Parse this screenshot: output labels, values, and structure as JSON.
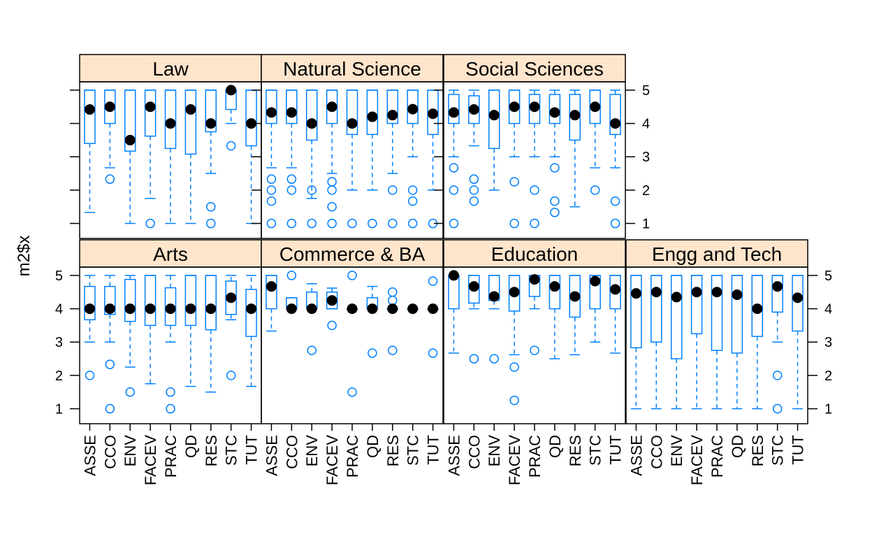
{
  "chart_data": {
    "type": "box",
    "ylabel": "m2$x",
    "categories": [
      "ASSE",
      "CCO",
      "ENV",
      "FACEV",
      "PRAC",
      "QD",
      "RES",
      "STC",
      "TUT"
    ],
    "ylim": [
      0.55,
      5.25
    ],
    "yticks": [
      1,
      2,
      3,
      4,
      5
    ],
    "colors": {
      "box": "#0080ff",
      "median": "#000000",
      "strip": "#ffe5cc",
      "frame": "#000000"
    },
    "panels": [
      {
        "name": "Arts",
        "boxes": [
          {
            "lo": 3.0,
            "q1": 3.67,
            "med": 4.0,
            "q3": 4.67,
            "hi": 5.0,
            "out": [
              2.0
            ]
          },
          {
            "lo": 3.0,
            "q1": 3.83,
            "med": 4.0,
            "q3": 4.67,
            "hi": 5.0,
            "out": [
              2.33,
              1.0
            ]
          },
          {
            "lo": 2.25,
            "q1": 3.62,
            "med": 4.0,
            "q3": 4.88,
            "hi": 5.0,
            "out": [
              1.5
            ]
          },
          {
            "lo": 1.75,
            "q1": 3.5,
            "med": 4.0,
            "q3": 5.0,
            "hi": 5.0,
            "out": []
          },
          {
            "lo": 3.0,
            "q1": 3.5,
            "med": 4.0,
            "q3": 4.63,
            "hi": 5.0,
            "out": [
              1.5,
              1.0
            ]
          },
          {
            "lo": 1.67,
            "q1": 3.5,
            "med": 4.0,
            "q3": 5.0,
            "hi": 5.0,
            "out": []
          },
          {
            "lo": 1.5,
            "q1": 3.37,
            "med": 4.0,
            "q3": 5.0,
            "hi": 5.0,
            "out": []
          },
          {
            "lo": 3.67,
            "q1": 3.83,
            "med": 4.33,
            "q3": 4.83,
            "hi": 5.0,
            "out": [
              2.0
            ]
          },
          {
            "lo": 1.67,
            "q1": 3.17,
            "med": 4.0,
            "q3": 4.58,
            "hi": 5.0,
            "out": []
          }
        ]
      },
      {
        "name": "Commerce & BA",
        "boxes": [
          {
            "lo": 3.33,
            "q1": 4.0,
            "med": 4.67,
            "q3": 5.0,
            "hi": 5.0,
            "out": []
          },
          {
            "lo": 4.0,
            "q1": 4.0,
            "med": 4.0,
            "q3": 4.33,
            "hi": 4.33,
            "out": [
              5.0
            ]
          },
          {
            "lo": 4.0,
            "q1": 4.0,
            "med": 4.0,
            "q3": 4.5,
            "hi": 4.75,
            "out": [
              2.75
            ]
          },
          {
            "lo": 4.0,
            "q1": 4.0,
            "med": 4.25,
            "q3": 4.5,
            "hi": 4.62,
            "out": [
              3.5
            ]
          },
          {
            "lo": 4.0,
            "q1": 4.0,
            "med": 4.0,
            "q3": 4.0,
            "hi": 4.0,
            "out": [
              5.0,
              1.5
            ]
          },
          {
            "lo": 4.0,
            "q1": 4.0,
            "med": 4.0,
            "q3": 4.33,
            "hi": 4.67,
            "out": [
              2.67
            ]
          },
          {
            "lo": 4.0,
            "q1": 4.0,
            "med": 4.0,
            "q3": 4.0,
            "hi": 4.0,
            "out": [
              4.5,
              4.25,
              2.75
            ]
          },
          {
            "lo": 4.0,
            "q1": 4.0,
            "med": 4.0,
            "q3": 4.0,
            "hi": 4.0,
            "out": []
          },
          {
            "lo": 4.0,
            "q1": 4.0,
            "med": 4.0,
            "q3": 4.0,
            "hi": 4.0,
            "out": [
              4.83,
              2.67
            ]
          }
        ]
      },
      {
        "name": "Education",
        "boxes": [
          {
            "lo": 2.67,
            "q1": 4.0,
            "med": 5.0,
            "q3": 5.0,
            "hi": 5.0,
            "out": []
          },
          {
            "lo": 4.0,
            "q1": 4.17,
            "med": 4.67,
            "q3": 5.0,
            "hi": 5.0,
            "out": [
              2.5
            ]
          },
          {
            "lo": 4.0,
            "q1": 4.25,
            "med": 4.37,
            "q3": 5.0,
            "hi": 5.0,
            "out": [
              2.5
            ]
          },
          {
            "lo": 2.62,
            "q1": 3.93,
            "med": 4.5,
            "q3": 5.0,
            "hi": 5.0,
            "out": [
              2.25,
              1.25
            ]
          },
          {
            "lo": 4.0,
            "q1": 4.37,
            "med": 4.88,
            "q3": 5.0,
            "hi": 5.0,
            "out": [
              2.75
            ]
          },
          {
            "lo": 2.5,
            "q1": 4.0,
            "med": 4.67,
            "q3": 5.0,
            "hi": 5.0,
            "out": []
          },
          {
            "lo": 2.62,
            "q1": 3.75,
            "med": 4.37,
            "q3": 5.0,
            "hi": 5.0,
            "out": []
          },
          {
            "lo": 3.0,
            "q1": 4.0,
            "med": 4.83,
            "q3": 5.0,
            "hi": 5.0,
            "out": []
          },
          {
            "lo": 2.67,
            "q1": 4.0,
            "med": 4.58,
            "q3": 5.0,
            "hi": 5.0,
            "out": []
          }
        ]
      },
      {
        "name": "Engg and Tech",
        "boxes": [
          {
            "lo": 1.0,
            "q1": 2.83,
            "med": 4.46,
            "q3": 5.0,
            "hi": 5.0,
            "out": []
          },
          {
            "lo": 1.0,
            "q1": 3.0,
            "med": 4.5,
            "q3": 5.0,
            "hi": 5.0,
            "out": []
          },
          {
            "lo": 1.0,
            "q1": 2.5,
            "med": 4.35,
            "q3": 5.0,
            "hi": 5.0,
            "out": []
          },
          {
            "lo": 1.0,
            "q1": 3.25,
            "med": 4.5,
            "q3": 5.0,
            "hi": 5.0,
            "out": []
          },
          {
            "lo": 1.0,
            "q1": 2.75,
            "med": 4.5,
            "q3": 5.0,
            "hi": 5.0,
            "out": []
          },
          {
            "lo": 1.0,
            "q1": 2.67,
            "med": 4.42,
            "q3": 5.0,
            "hi": 5.0,
            "out": []
          },
          {
            "lo": 1.0,
            "q1": 3.17,
            "med": 4.0,
            "q3": 5.0,
            "hi": 5.0,
            "out": []
          },
          {
            "lo": 3.0,
            "q1": 3.9,
            "med": 4.67,
            "q3": 5.0,
            "hi": 5.0,
            "out": [
              2.0,
              1.0
            ]
          },
          {
            "lo": 1.0,
            "q1": 3.33,
            "med": 4.33,
            "q3": 5.0,
            "hi": 5.0,
            "out": []
          }
        ]
      },
      {
        "name": "Law",
        "boxes": [
          {
            "lo": 1.33,
            "q1": 3.4,
            "med": 4.42,
            "q3": 5.0,
            "hi": 5.0,
            "out": []
          },
          {
            "lo": 2.67,
            "q1": 4.0,
            "med": 4.5,
            "q3": 5.0,
            "hi": 5.0,
            "out": [
              2.33
            ]
          },
          {
            "lo": 1.0,
            "q1": 3.17,
            "med": 3.5,
            "q3": 5.0,
            "hi": 5.0,
            "out": []
          },
          {
            "lo": 1.75,
            "q1": 3.62,
            "med": 4.5,
            "q3": 5.0,
            "hi": 5.0,
            "out": [
              1.0
            ]
          },
          {
            "lo": 1.0,
            "q1": 3.25,
            "med": 4.0,
            "q3": 5.0,
            "hi": 5.0,
            "out": []
          },
          {
            "lo": 1.0,
            "q1": 3.08,
            "med": 4.42,
            "q3": 5.0,
            "hi": 5.0,
            "out": []
          },
          {
            "lo": 2.5,
            "q1": 3.75,
            "med": 4.0,
            "q3": 5.0,
            "hi": 5.0,
            "out": [
              1.5,
              1.0
            ]
          },
          {
            "lo": 4.0,
            "q1": 4.42,
            "med": 5.0,
            "q3": 5.0,
            "hi": 5.0,
            "out": [
              3.33
            ]
          },
          {
            "lo": 1.0,
            "q1": 3.33,
            "med": 4.0,
            "q3": 5.0,
            "hi": 5.0,
            "out": []
          }
        ]
      },
      {
        "name": "Natural Science",
        "boxes": [
          {
            "lo": 2.67,
            "q1": 4.0,
            "med": 4.33,
            "q3": 5.0,
            "hi": 5.0,
            "out": [
              2.33,
              2.0,
              1.67,
              1.0
            ]
          },
          {
            "lo": 2.67,
            "q1": 4.0,
            "med": 4.33,
            "q3": 5.0,
            "hi": 5.0,
            "out": [
              2.33,
              2.0,
              1.0
            ]
          },
          {
            "lo": 1.75,
            "q1": 3.5,
            "med": 4.0,
            "q3": 5.0,
            "hi": 5.0,
            "out": [
              2.0,
              1.0
            ]
          },
          {
            "lo": 2.5,
            "q1": 4.0,
            "med": 4.5,
            "q3": 5.0,
            "hi": 5.0,
            "out": [
              2.25,
              2.0,
              1.5,
              1.0
            ]
          },
          {
            "lo": 2.0,
            "q1": 3.67,
            "med": 4.0,
            "q3": 5.0,
            "hi": 5.0,
            "out": [
              1.0
            ]
          },
          {
            "lo": 2.0,
            "q1": 3.67,
            "med": 4.2,
            "q3": 5.0,
            "hi": 5.0,
            "out": [
              1.0
            ]
          },
          {
            "lo": 2.5,
            "q1": 4.0,
            "med": 4.25,
            "q3": 5.0,
            "hi": 5.0,
            "out": [
              2.0,
              1.0
            ]
          },
          {
            "lo": 3.0,
            "q1": 4.0,
            "med": 4.43,
            "q3": 5.0,
            "hi": 5.0,
            "out": [
              2.0,
              1.67,
              1.0
            ]
          },
          {
            "lo": 2.0,
            "q1": 3.67,
            "med": 4.29,
            "q3": 5.0,
            "hi": 5.0,
            "out": [
              1.0
            ]
          }
        ]
      },
      {
        "name": "Social Sciences",
        "boxes": [
          {
            "lo": 3.0,
            "q1": 4.0,
            "med": 4.33,
            "q3": 4.87,
            "hi": 5.0,
            "out": [
              2.67,
              2.0,
              1.0
            ]
          },
          {
            "lo": 3.33,
            "q1": 4.0,
            "med": 4.42,
            "q3": 4.83,
            "hi": 5.0,
            "out": [
              2.33,
              2.0,
              1.67
            ]
          },
          {
            "lo": 2.0,
            "q1": 3.25,
            "med": 4.25,
            "q3": 5.0,
            "hi": 5.0,
            "out": []
          },
          {
            "lo": 3.0,
            "q1": 4.0,
            "med": 4.5,
            "q3": 5.0,
            "hi": 5.0,
            "out": [
              2.25,
              1.0
            ]
          },
          {
            "lo": 3.0,
            "q1": 4.0,
            "med": 4.5,
            "q3": 4.87,
            "hi": 5.0,
            "out": [
              2.0,
              1.0
            ]
          },
          {
            "lo": 3.0,
            "q1": 4.0,
            "med": 4.33,
            "q3": 4.87,
            "hi": 5.0,
            "out": [
              2.67,
              1.67,
              1.33
            ]
          },
          {
            "lo": 1.5,
            "q1": 3.5,
            "med": 4.25,
            "q3": 4.87,
            "hi": 5.0,
            "out": []
          },
          {
            "lo": 2.67,
            "q1": 4.0,
            "med": 4.5,
            "q3": 5.0,
            "hi": 5.0,
            "out": [
              2.0
            ]
          },
          {
            "lo": 2.67,
            "q1": 3.67,
            "med": 4.0,
            "q3": 4.87,
            "hi": 5.0,
            "out": [
              1.67,
              1.0
            ]
          }
        ]
      }
    ]
  }
}
